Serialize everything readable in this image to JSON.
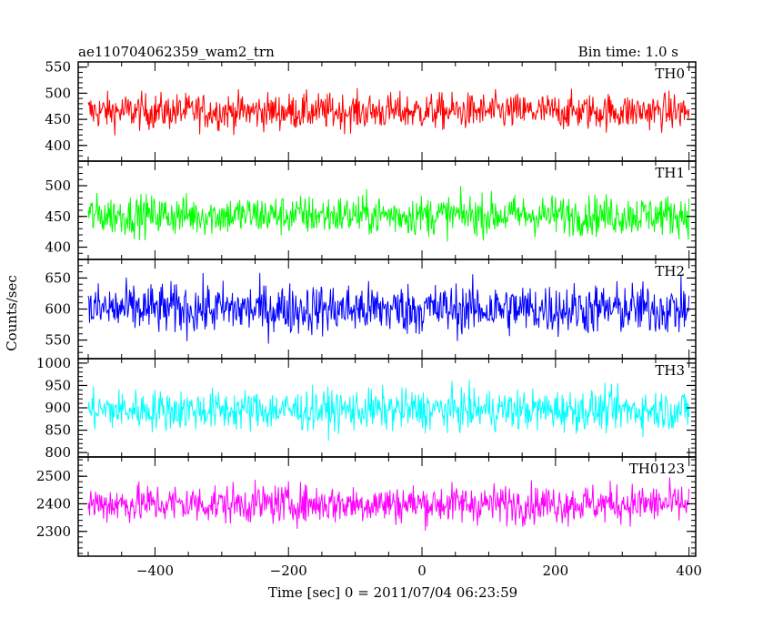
{
  "chart_data": {
    "type": "line",
    "title": "ae110704062359_wam2_trn",
    "bin_label": "Bin time: 1.0 s",
    "ylabel": "Counts/sec",
    "xlabel": "Time [sec] 0 = 2011/07/04 06:23:59",
    "xlim": [
      -515,
      410
    ],
    "x_ticks": [
      -400,
      -200,
      0,
      200,
      400
    ],
    "x_tick_labels": [
      "−400",
      "−200",
      "0",
      "200",
      "400"
    ],
    "x_range_data": [
      -500,
      400
    ],
    "panels": [
      {
        "name": "TH0",
        "color": "#ff0000",
        "ylim": [
          370,
          560
        ],
        "y_ticks": [
          400,
          450,
          500,
          550
        ],
        "mean": 465,
        "spread": 32
      },
      {
        "name": "TH1",
        "color": "#00ff00",
        "ylim": [
          380,
          540
        ],
        "y_ticks": [
          400,
          450,
          500
        ],
        "mean": 452,
        "spread": 30
      },
      {
        "name": "TH2",
        "color": "#0000ff",
        "ylim": [
          520,
          680
        ],
        "y_ticks": [
          550,
          600,
          650
        ],
        "mean": 600,
        "spread": 38
      },
      {
        "name": "TH3",
        "color": "#00ffff",
        "ylim": [
          790,
          1010
        ],
        "y_ticks": [
          800,
          850,
          900,
          950,
          1000
        ],
        "mean": 895,
        "spread": 42
      },
      {
        "name": "TH0123",
        "color": "#ff00ff",
        "ylim": [
          2210,
          2570
        ],
        "y_ticks": [
          2300,
          2400,
          2500
        ],
        "mean": 2400,
        "spread": 65
      }
    ]
  }
}
